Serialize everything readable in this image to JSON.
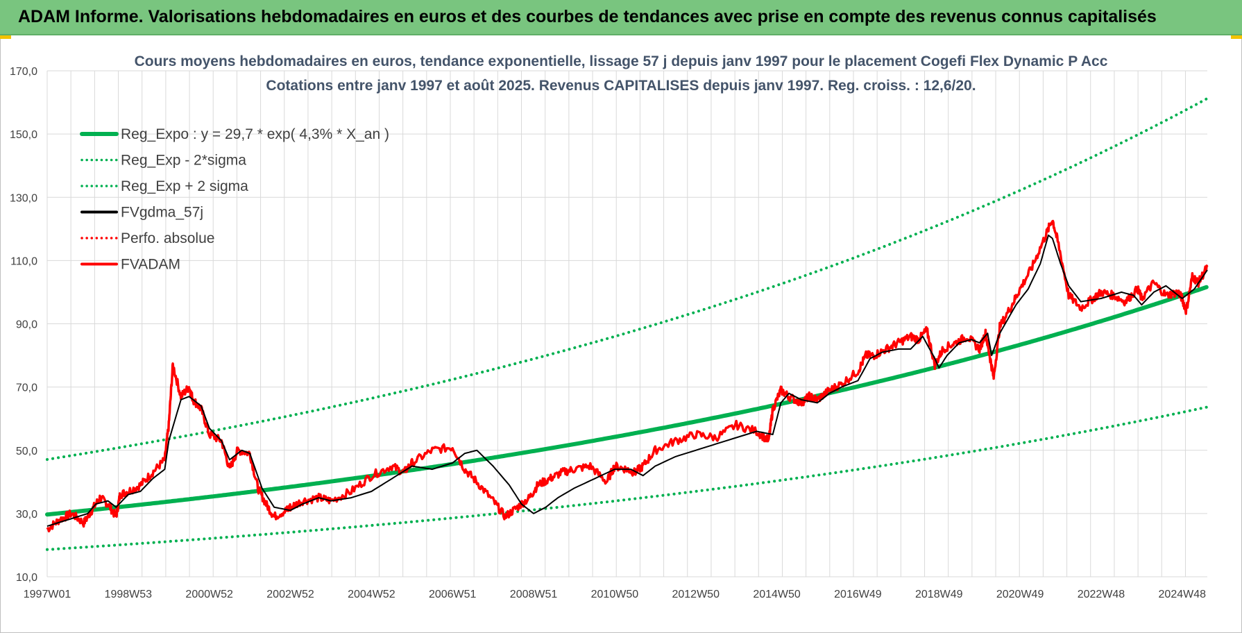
{
  "header": {
    "title": "ADAM Informe. Valorisations hebdomadaires en euros et des courbes de tendances avec prise en compte des revenus connus capitalisés"
  },
  "colors": {
    "banner": "#79c57f",
    "trend": "#00b050",
    "gdma": "#000000",
    "adam": "#ff0000",
    "grid": "#d9d9d9",
    "title": "#44546a"
  },
  "chart_data": {
    "type": "line",
    "title_line1": "Cours moyens hebdomadaires en euros, tendance exponentielle, lissage 57 j depuis janv 1997 pour le placement Cogefi Flex Dynamic P Acc",
    "title_line2": "Cotations entre janv 1997 et août 2025.  Revenus CAPITALISES depuis janv 1997. Reg. croiss. : 12,6/20.",
    "xlabel": "",
    "ylabel": "",
    "ylim": [
      10,
      170
    ],
    "xlim": [
      1997.0,
      2025.62
    ],
    "y_ticks": [
      "10,0",
      "30,0",
      "50,0",
      "70,0",
      "90,0",
      "110,0",
      "130,0",
      "150,0",
      "170,0"
    ],
    "x_ticks": [
      {
        "label": "1997W01",
        "year": 1997.0
      },
      {
        "label": "1998W53",
        "year": 1999.0
      },
      {
        "label": "2000W52",
        "year": 2001.0
      },
      {
        "label": "2002W52",
        "year": 2003.0
      },
      {
        "label": "2004W52",
        "year": 2005.0
      },
      {
        "label": "2006W51",
        "year": 2007.0
      },
      {
        "label": "2008W51",
        "year": 2009.0
      },
      {
        "label": "2010W50",
        "year": 2011.0
      },
      {
        "label": "2012W50",
        "year": 2013.0
      },
      {
        "label": "2014W50",
        "year": 2015.0
      },
      {
        "label": "2016W49",
        "year": 2017.0
      },
      {
        "label": "2018W49",
        "year": 2019.0
      },
      {
        "label": "2020W49",
        "year": 2021.0
      },
      {
        "label": "2022W48",
        "year": 2023.0
      },
      {
        "label": "2024W48",
        "year": 2025.0
      }
    ],
    "grid": true,
    "legend_position": "top-left",
    "series": [
      {
        "name": "Reg_Expo : y = 29,7 * exp( 4,3% *  X_an )",
        "style": "solid",
        "color": "#00b050",
        "formula": {
          "a": 29.7,
          "b": 0.043
        }
      },
      {
        "name": "Reg_Exp - 2*sigma",
        "style": "dotted",
        "color": "#00b050",
        "formula": {
          "a": 18.6,
          "b": 0.043
        }
      },
      {
        "name": "Reg_Exp + 2 sigma",
        "style": "dotted",
        "color": "#00b050",
        "formula": {
          "a": 47.1,
          "b": 0.043
        }
      },
      {
        "name": "FVgdma_57j",
        "style": "solid",
        "color": "#000000",
        "x": [
          1997.0,
          1997.5,
          1998.0,
          1998.2,
          1998.5,
          1998.7,
          1999.0,
          1999.3,
          1999.6,
          1999.9,
          2000.0,
          2000.3,
          2000.5,
          2000.8,
          2001.0,
          2001.3,
          2001.5,
          2001.8,
          2002.0,
          2002.3,
          2002.6,
          2003.0,
          2003.3,
          2003.7,
          2004.0,
          2004.5,
          2005.0,
          2005.5,
          2006.0,
          2006.5,
          2007.0,
          2007.3,
          2007.6,
          2008.0,
          2008.4,
          2008.7,
          2009.0,
          2009.3,
          2009.6,
          2010.0,
          2010.5,
          2011.0,
          2011.4,
          2011.7,
          2012.0,
          2012.5,
          2013.0,
          2013.5,
          2014.0,
          2014.5,
          2014.9,
          2015.1,
          2015.3,
          2015.6,
          2016.0,
          2016.3,
          2016.6,
          2017.0,
          2017.3,
          2017.6,
          2018.0,
          2018.3,
          2018.6,
          2018.9,
          2019.0,
          2019.2,
          2019.5,
          2019.8,
          2020.0,
          2020.2,
          2020.3,
          2020.5,
          2020.9,
          2021.2,
          2021.5,
          2021.7,
          2021.8,
          2022.0,
          2022.2,
          2022.5,
          2023.0,
          2023.5,
          2023.8,
          2024.0,
          2024.3,
          2024.6,
          2025.0,
          2025.3,
          2025.62
        ],
        "y": [
          26,
          28,
          30,
          33,
          34,
          32,
          36,
          37,
          41,
          44,
          53,
          66,
          67,
          64,
          57,
          53,
          47,
          50,
          49,
          38,
          32,
          31,
          33,
          35,
          34,
          35,
          37,
          41,
          45,
          44,
          46,
          49,
          50,
          45,
          39,
          33,
          30,
          32,
          35,
          38,
          41,
          44,
          44,
          42,
          45,
          48,
          50,
          52,
          54,
          56,
          55,
          65,
          68,
          66,
          65,
          68,
          70,
          72,
          79,
          81,
          82,
          82,
          86,
          79,
          76,
          80,
          84,
          85,
          84,
          87,
          80,
          87,
          96,
          101,
          109,
          118,
          117,
          109,
          102,
          97,
          98,
          100,
          99,
          96,
          100,
          102,
          98,
          101,
          107
        ]
      },
      {
        "name": "Perfo. absolue",
        "style": "dotted",
        "color": "#ff0000"
      },
      {
        "name": "FVADAM",
        "style": "solid",
        "color": "#ff0000",
        "x": [
          1997.0,
          1997.3,
          1997.6,
          1997.9,
          1998.1,
          1998.3,
          1998.5,
          1998.7,
          1998.8,
          1999.0,
          1999.3,
          1999.6,
          1999.9,
          2000.0,
          2000.1,
          2000.3,
          2000.5,
          2000.6,
          2000.8,
          2001.0,
          2001.3,
          2001.5,
          2001.7,
          2002.0,
          2002.2,
          2002.4,
          2002.6,
          2002.9,
          2003.0,
          2003.3,
          2003.7,
          2004.0,
          2004.5,
          2005.0,
          2005.5,
          2005.8,
          2006.0,
          2006.5,
          2007.0,
          2007.3,
          2007.6,
          2008.0,
          2008.3,
          2008.6,
          2008.9,
          2009.1,
          2009.4,
          2009.7,
          2010.0,
          2010.4,
          2010.8,
          2011.0,
          2011.3,
          2011.5,
          2011.7,
          2012.0,
          2012.5,
          2013.0,
          2013.5,
          2014.0,
          2014.5,
          2014.8,
          2014.9,
          2015.1,
          2015.3,
          2015.6,
          2015.8,
          2016.0,
          2016.3,
          2016.6,
          2017.0,
          2017.2,
          2017.4,
          2017.7,
          2018.0,
          2018.3,
          2018.5,
          2018.7,
          2018.9,
          2019.1,
          2019.4,
          2019.7,
          2020.0,
          2020.15,
          2020.25,
          2020.35,
          2020.5,
          2020.8,
          2021.0,
          2021.3,
          2021.6,
          2021.8,
          2021.95,
          2022.2,
          2022.5,
          2022.8,
          2023.0,
          2023.3,
          2023.6,
          2023.9,
          2024.0,
          2024.3,
          2024.6,
          2024.9,
          2025.0,
          2025.1,
          2025.25,
          2025.4,
          2025.62
        ],
        "y": [
          25,
          28,
          30,
          27,
          31,
          35,
          33,
          29,
          36,
          37,
          39,
          43,
          47,
          58,
          77,
          67,
          70,
          66,
          63,
          55,
          53,
          44,
          50,
          49,
          38,
          33,
          29,
          31,
          32,
          34,
          35,
          34,
          37,
          42,
          45,
          43,
          46,
          50,
          51,
          44,
          40,
          34,
          29,
          32,
          35,
          39,
          41,
          43,
          44,
          45,
          40,
          45,
          44,
          43,
          45,
          50,
          53,
          55,
          54,
          58,
          56,
          53,
          63,
          69,
          67,
          65,
          67,
          66,
          69,
          71,
          75,
          80,
          80,
          82,
          84,
          86,
          85,
          88,
          77,
          82,
          84,
          86,
          82,
          87,
          80,
          73,
          89,
          96,
          101,
          108,
          117,
          123,
          115,
          99,
          95,
          98,
          100,
          99,
          97,
          101,
          98,
          103,
          99,
          100,
          98,
          94,
          105,
          103,
          108
        ]
      }
    ]
  }
}
